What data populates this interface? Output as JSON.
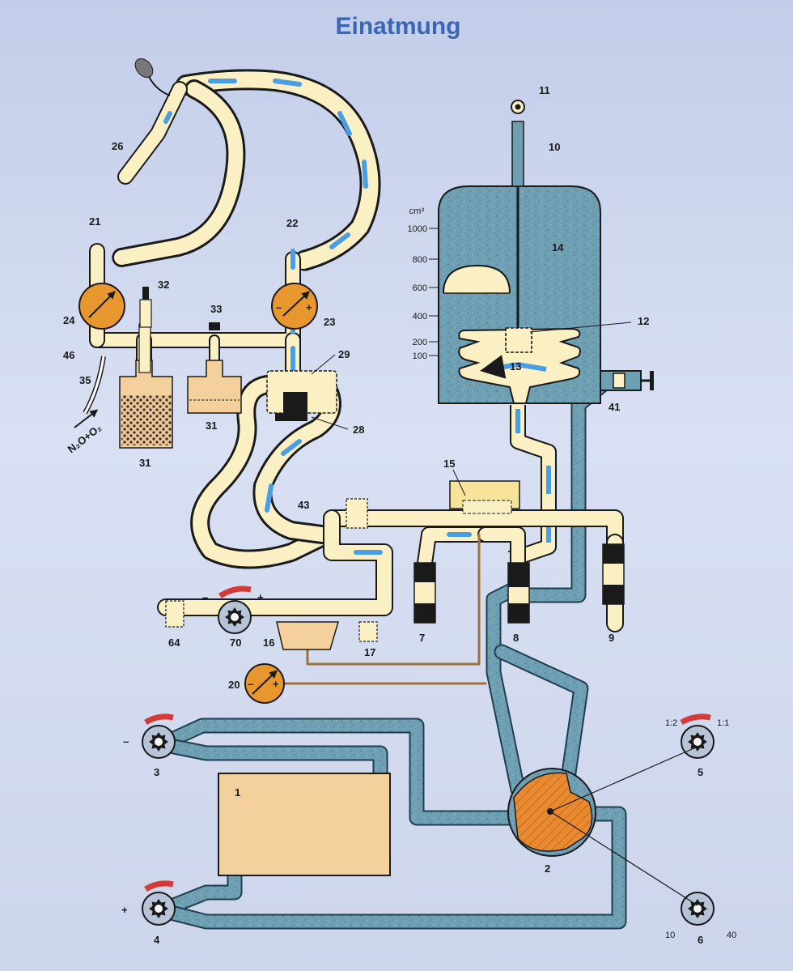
{
  "title": "Einatmung",
  "colors": {
    "gas": "#fbf0c4",
    "blue_gas": "#6b9fb3",
    "arrow": "#4a9ee6",
    "gauge": "#e8962e",
    "box": "#f3d09c",
    "rotor": "#e88a30",
    "title": "#3a67b5"
  },
  "labels": {
    "n1": "1",
    "n2": "2",
    "n3": "3",
    "n4": "4",
    "n5": "5",
    "n6": "6",
    "n7": "7",
    "n8": "8",
    "n9": "9",
    "n10": "10",
    "n11": "11",
    "n12": "12",
    "n13": "13",
    "n14": "14",
    "n15": "15",
    "n16": "16",
    "n17": "17",
    "n20": "20",
    "n21": "21",
    "n22": "22",
    "n23": "23",
    "n24": "24",
    "n26": "26",
    "n28": "28",
    "n29": "29",
    "n31a": "31",
    "n31b": "31",
    "n32": "32",
    "n33": "33",
    "n35": "35",
    "n41": "41",
    "n43": "43",
    "n46": "46",
    "n64": "64",
    "n70": "70"
  },
  "scale": {
    "unit": "cm³",
    "ticks": [
      "1000",
      "800",
      "600",
      "400",
      "200",
      "100"
    ]
  },
  "gas_label": "N₂O+O₂",
  "knob_labels": {
    "minus_3": "–",
    "plus_4": "+",
    "ratio_low": "1:2",
    "ratio_high": "1:1",
    "freq_low": "10",
    "freq_high": "40",
    "valve_minus": "–",
    "valve_plus": "+",
    "g23_minus": "–",
    "g23_plus": "+",
    "g20_minus": "–",
    "g20_plus": "+"
  }
}
